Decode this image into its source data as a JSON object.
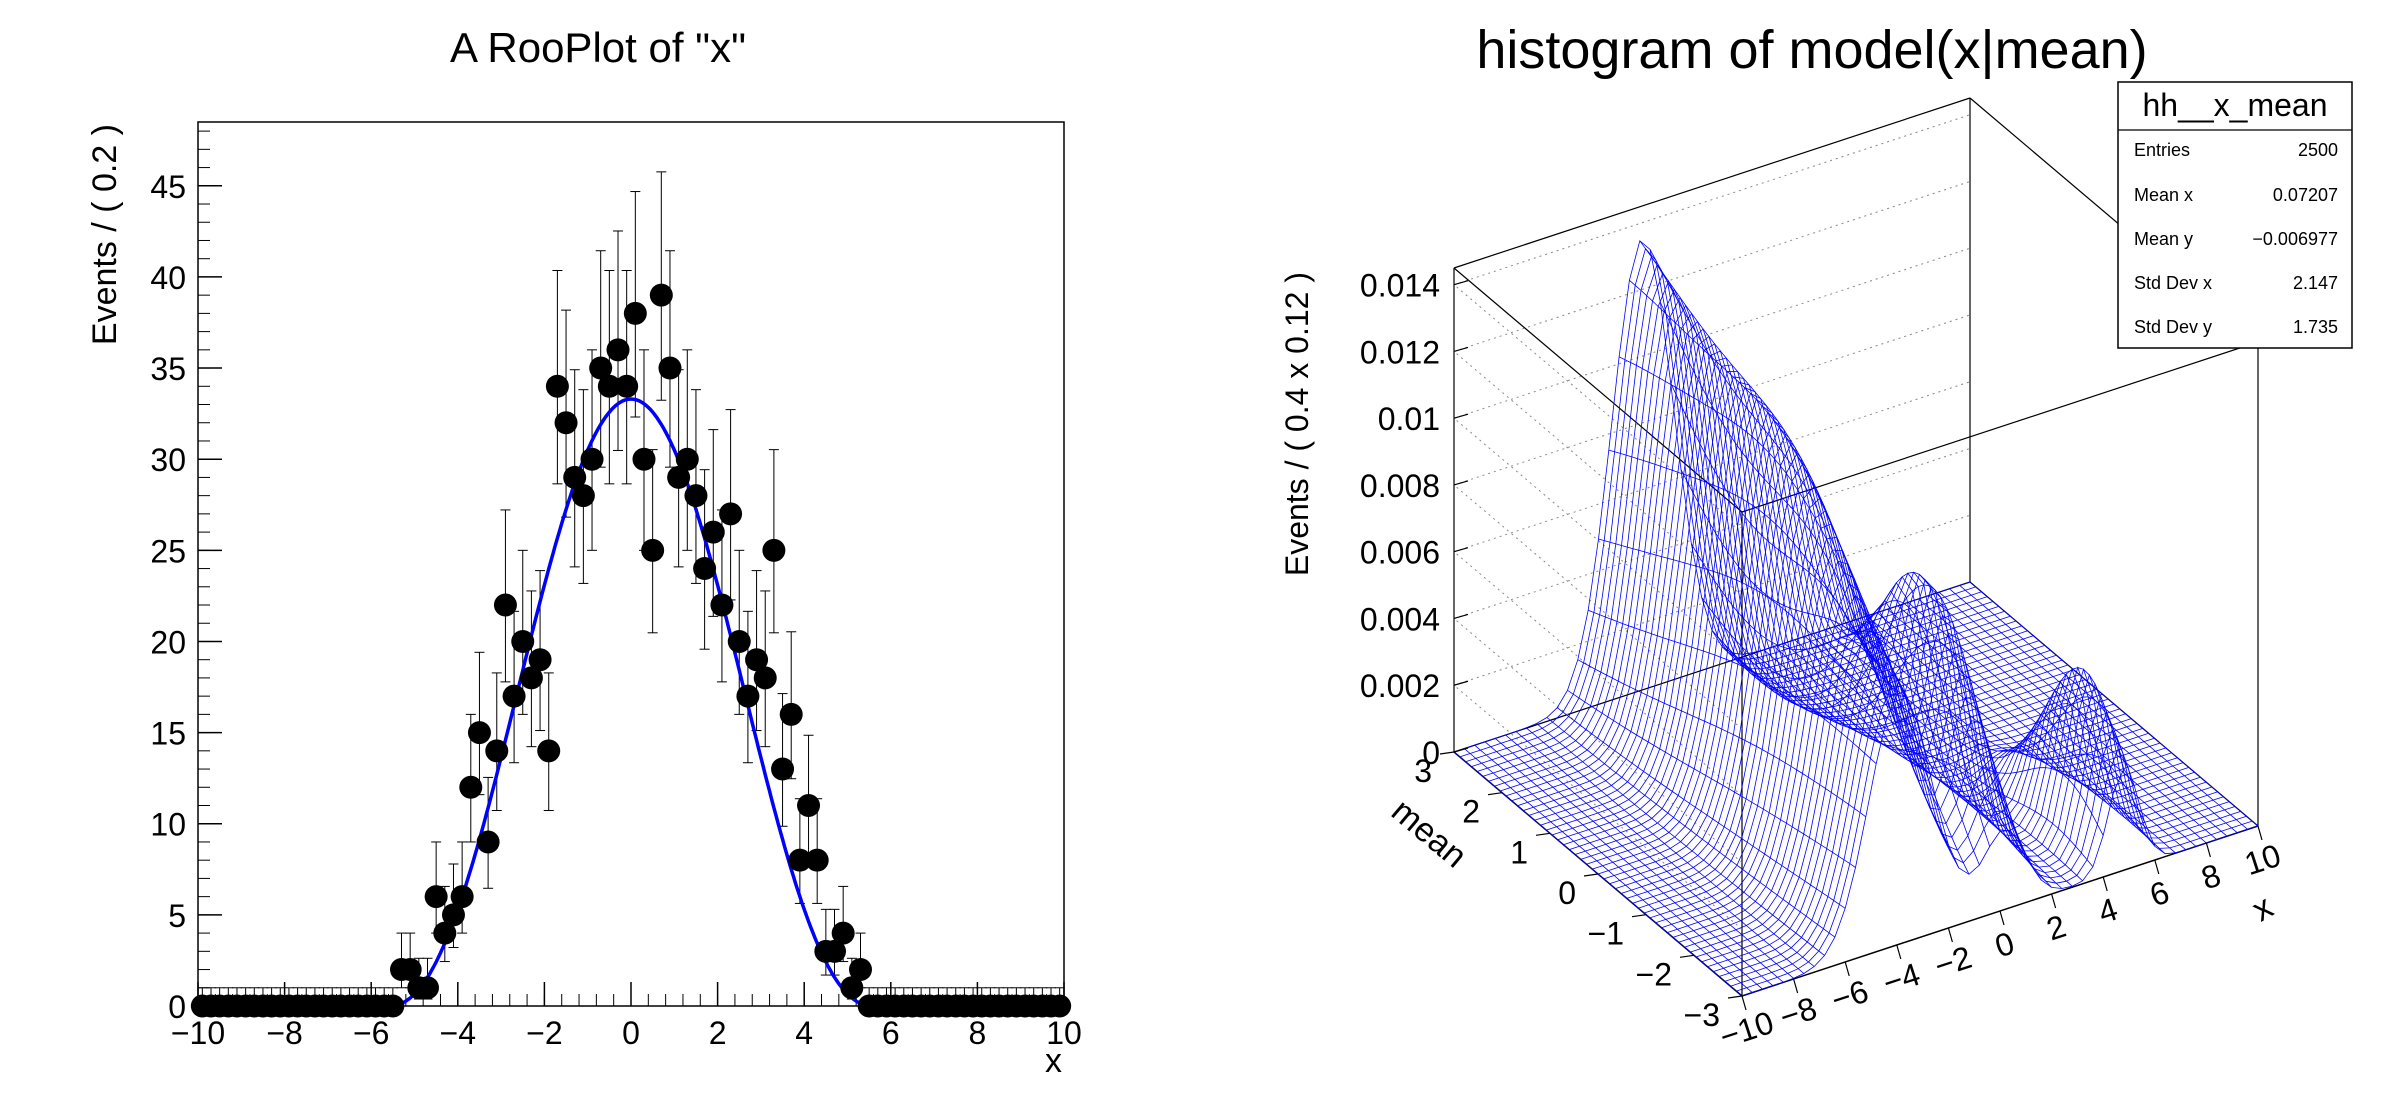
{
  "chart_data": [
    {
      "type": "scatter",
      "title": "A RooPlot of \"x\"",
      "xlabel": "x",
      "ylabel": "Events / ( 0.2 )",
      "xlim": [
        -10,
        10
      ],
      "ylim": [
        0,
        48.5
      ],
      "grid": false,
      "x_ticks": [
        -10,
        -8,
        -6,
        -4,
        -2,
        0,
        2,
        4,
        6,
        8,
        10
      ],
      "x_tick_labels": [
        "−10",
        "−8",
        "−6",
        "−4",
        "−2",
        "0",
        "2",
        "4",
        "6",
        "8",
        "10"
      ],
      "y_ticks": [
        0,
        5,
        10,
        15,
        20,
        25,
        30,
        35,
        40,
        45
      ],
      "y_tick_labels": [
        "0",
        "5",
        "10",
        "15",
        "20",
        "25",
        "30",
        "35",
        "40",
        "45"
      ],
      "series": [
        {
          "kind": "points",
          "color": "#000000",
          "x": [
            -9.9,
            -9.7,
            -9.5,
            -9.3,
            -9.1,
            -8.9,
            -8.7,
            -8.5,
            -8.3,
            -8.1,
            -7.9,
            -7.7,
            -7.5,
            -7.3,
            -7.1,
            -6.9,
            -6.7,
            -6.5,
            -6.3,
            -6.1,
            -5.9,
            -5.7,
            -5.5,
            -5.3,
            -5.1,
            -4.9,
            -4.7,
            -4.5,
            -4.3,
            -4.1,
            -3.9,
            -3.7,
            -3.5,
            -3.3,
            -3.1,
            -2.9,
            -2.7,
            -2.5,
            -2.3,
            -2.1,
            -1.9,
            -1.7,
            -1.5,
            -1.3,
            -1.1,
            -0.9,
            -0.7,
            -0.5,
            -0.3,
            -0.1,
            0.1,
            0.3,
            0.5,
            0.7,
            0.9,
            1.1,
            1.3,
            1.5,
            1.7,
            1.9,
            2.1,
            2.3,
            2.5,
            2.7,
            2.9,
            3.1,
            3.3,
            3.5,
            3.7,
            3.9,
            4.1,
            4.3,
            4.5,
            4.7,
            4.9,
            5.1,
            5.3,
            5.5,
            5.7,
            5.9,
            6.1,
            6.3,
            6.5,
            6.7,
            6.9,
            7.1,
            7.3,
            7.5,
            7.7,
            7.9,
            8.1,
            8.3,
            8.5,
            8.7,
            8.9,
            9.1,
            9.3,
            9.5,
            9.7,
            9.9
          ],
          "y": [
            0,
            0,
            0,
            0,
            0,
            0,
            0,
            0,
            0,
            0,
            0,
            0,
            0,
            0,
            0,
            0,
            0,
            0,
            0,
            0,
            0,
            0,
            0,
            2,
            2,
            1,
            1,
            6,
            4,
            5,
            6,
            12,
            15,
            9,
            14,
            22,
            17,
            20,
            18,
            19,
            14,
            34,
            32,
            29,
            28,
            30,
            35,
            34,
            36,
            34,
            38,
            30,
            25,
            39,
            35,
            29,
            30,
            28,
            24,
            26,
            22,
            27,
            20,
            17,
            19,
            18,
            25,
            13,
            16,
            8,
            11,
            8,
            3,
            3,
            4,
            1,
            2,
            0,
            0,
            0,
            0,
            0,
            0,
            0,
            0,
            0,
            0,
            0,
            0,
            0,
            0,
            0,
            0,
            0,
            0,
            0,
            0,
            0,
            0,
            0
          ]
        },
        {
          "kind": "curve",
          "color": "#0000ff",
          "peak": 33.3,
          "support": [
            -5.6,
            5.6
          ]
        }
      ]
    },
    {
      "type": "surface",
      "title": "histogram of model(x|mean)",
      "xlabel": "x",
      "ylabel": "mean",
      "zlabel": "Events / ( 0.4 x 0.12 )",
      "xlim": [
        -10,
        10
      ],
      "ylim": [
        -3,
        3
      ],
      "zlim": [
        0,
        0.0145
      ],
      "grid": true,
      "line_color": "#0000ff",
      "x_tick_labels": [
        "−10",
        "−8",
        "−6",
        "−4",
        "−2",
        "0",
        "2",
        "4",
        "6",
        "8",
        "10"
      ],
      "y_tick_labels": [
        "−3",
        "−2",
        "−1",
        "0",
        "1",
        "2",
        "3"
      ],
      "z_tick_labels": [
        "0",
        "0.002",
        "0.004",
        "0.006",
        "0.008",
        "0.01",
        "0.012",
        "0.014"
      ],
      "stats": {
        "name": "hh__x_mean",
        "rows": [
          {
            "label": "Entries",
            "value": "2500"
          },
          {
            "label": "Mean x",
            "value": "0.07207"
          },
          {
            "label": "Mean y",
            "value": "−0.006977"
          },
          {
            "label": "Std Dev x",
            "value": "2.147"
          },
          {
            "label": "Std Dev y",
            "value": "1.735"
          }
        ],
        "position": "top-right"
      }
    }
  ]
}
